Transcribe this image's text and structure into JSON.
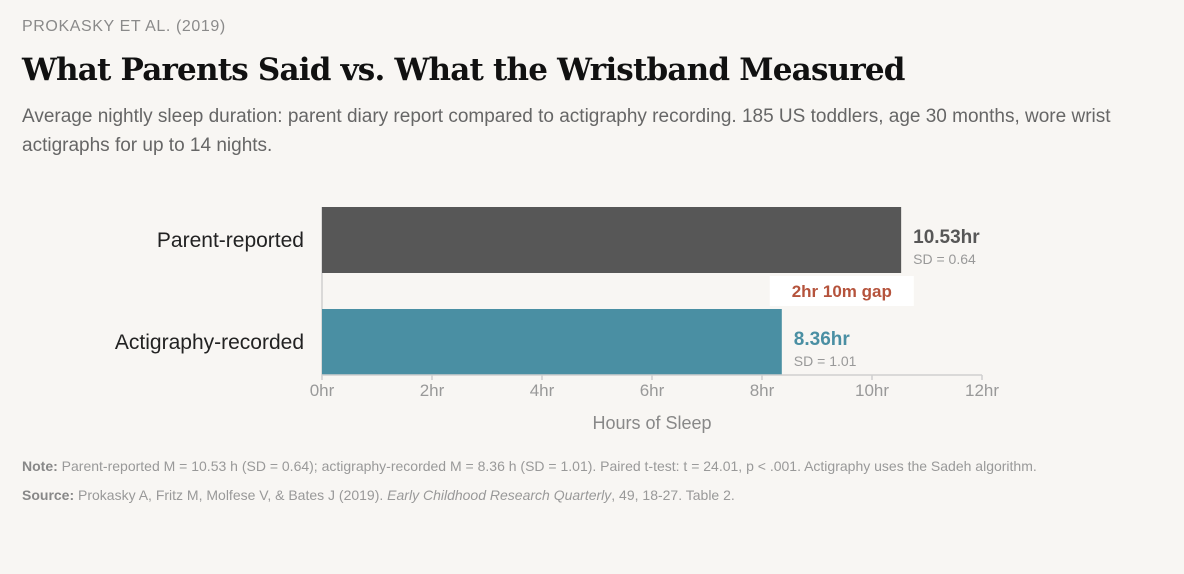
{
  "header": {
    "kicker": "PROKASKY ET AL. (2019)",
    "title": "What Parents Said vs. What the Wristband Measured",
    "subtitle": "Average nightly sleep duration: parent diary report compared to actigraphy recording. 185 US toddlers, age 30 months, wore wrist actigraphs for up to 14 nights."
  },
  "chart_data": {
    "type": "bar",
    "orientation": "horizontal",
    "categories": [
      "Parent-reported",
      "Actigraphy-recorded"
    ],
    "values": [
      10.53,
      8.36
    ],
    "value_labels": [
      "10.53hr",
      "8.36hr"
    ],
    "sd_labels": [
      "SD = 0.64",
      "SD = 1.01"
    ],
    "colors": [
      "#575757",
      "#4a8fa3"
    ],
    "gap_label": "2hr 10m gap",
    "gap_color": "#b5533c",
    "xlabel": "Hours of Sleep",
    "xlim": [
      0,
      12
    ],
    "xticks": [
      0,
      2,
      4,
      6,
      8,
      10,
      12
    ],
    "xtick_labels": [
      "0hr",
      "2hr",
      "4hr",
      "6hr",
      "8hr",
      "10hr",
      "12hr"
    ],
    "grid": false,
    "legend": "none"
  },
  "footer": {
    "note_label": "Note:",
    "note_text": "Parent-reported M = 10.53 h (SD = 0.64); actigraphy-recorded M = 8.36 h (SD = 1.01). Paired t-test: t = 24.01, p < .001. Actigraphy uses the Sadeh algorithm.",
    "source_label": "Source:",
    "source_authors": "Prokasky A, Fritz M, Molfese V, & Bates J (2019).",
    "source_journal": "Early Childhood Research Quarterly",
    "source_rest": ", 49, 18-27. Table 2."
  }
}
